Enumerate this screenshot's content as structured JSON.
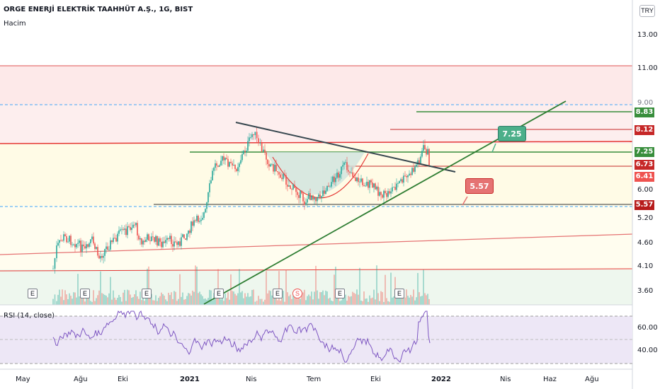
{
  "header": {
    "symbol_title": "ORGE ENERJİ ELEKTRİK TAAHHÜT A.Ş., 1G, BIST",
    "volume_label": "Hacim",
    "rsi_label": "RSI (14, close)",
    "currency": "TRY"
  },
  "price_axis": {
    "ticks": [
      "13.00",
      "11.00",
      "9.00",
      "6.00",
      "5.20",
      "4.60",
      "4.10",
      "3.60"
    ]
  },
  "rsi_axis": {
    "ticks": [
      "60.00",
      "40.00"
    ]
  },
  "time_axis": {
    "ticks": [
      {
        "label": "May",
        "bold": false
      },
      {
        "label": "Ağu",
        "bold": false
      },
      {
        "label": "Eki",
        "bold": false
      },
      {
        "label": "2021",
        "bold": true
      },
      {
        "label": "Nis",
        "bold": false
      },
      {
        "label": "Tem",
        "bold": false
      },
      {
        "label": "Eki",
        "bold": false
      },
      {
        "label": "2022",
        "bold": true
      },
      {
        "label": "Nis",
        "bold": false
      },
      {
        "label": "Haz",
        "bold": false
      },
      {
        "label": "Ağu",
        "bold": false
      }
    ]
  },
  "price_badges": [
    {
      "label": "8.83",
      "color": "#388e3c"
    },
    {
      "label": "8.12",
      "color": "#c62828"
    },
    {
      "label": "7.25",
      "color": "#388e3c"
    },
    {
      "label": "6.73",
      "color": "#c62828"
    },
    {
      "label": "6.41",
      "color": "#ef5350"
    },
    {
      "label": "5.57",
      "color": "#b71c1c"
    }
  ],
  "callouts": [
    {
      "label": "7.25",
      "color": "#4caf8a"
    },
    {
      "label": "5.57",
      "color": "#e57373"
    }
  ],
  "event_markers": {
    "earnings": [
      "E",
      "E",
      "E",
      "E",
      "E",
      "E",
      "E"
    ],
    "split": "S"
  },
  "colors": {
    "up": "#26a69a",
    "down": "#ef5350",
    "rsi_line": "#7e57c2",
    "rsi_band": "#ede7f6",
    "support": "#388e3c",
    "resistance": "#c62828"
  }
}
